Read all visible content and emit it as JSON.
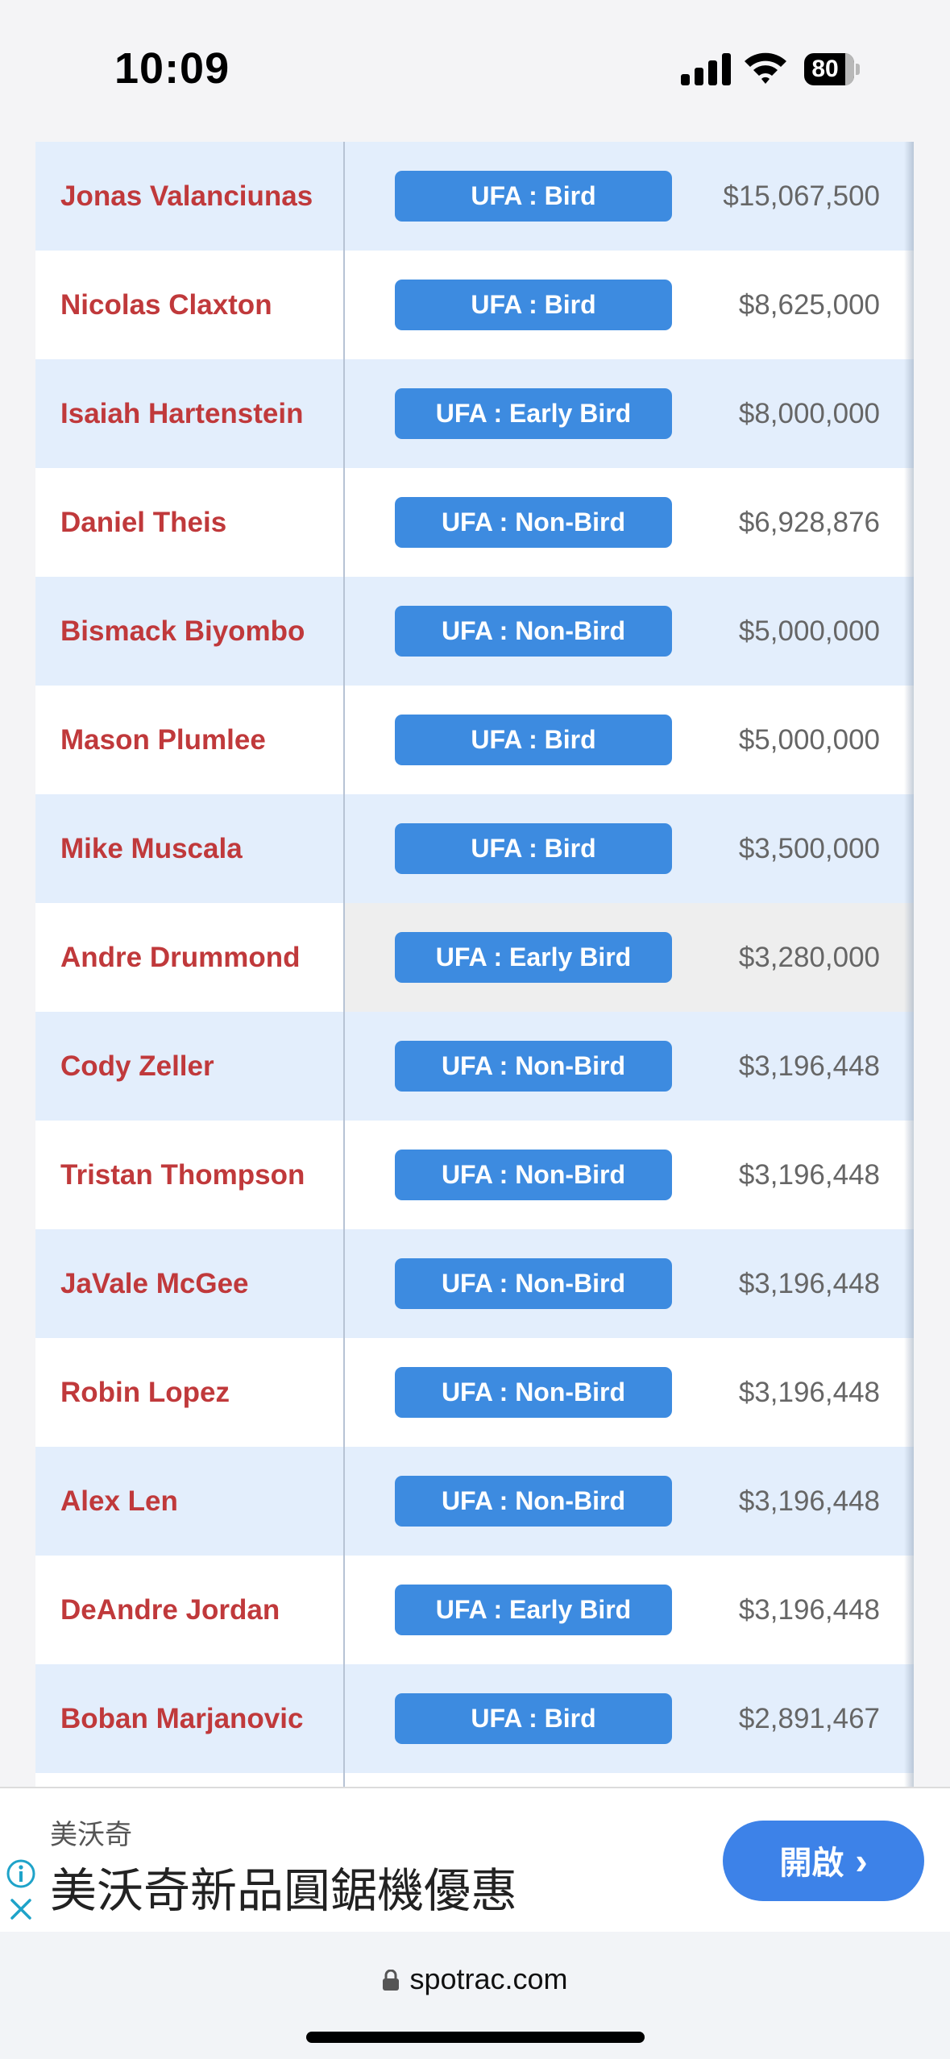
{
  "status_bar": {
    "time": "10:09",
    "battery": "80"
  },
  "rows": [
    {
      "name": "Jonas Valanciunas",
      "status": "UFA : Bird",
      "amount": "$15,067,500"
    },
    {
      "name": "Nicolas Claxton",
      "status": "UFA : Bird",
      "amount": "$8,625,000"
    },
    {
      "name": "Isaiah Hartenstein",
      "status": "UFA : Early Bird",
      "amount": "$8,000,000"
    },
    {
      "name": "Daniel Theis",
      "status": "UFA : Non-Bird",
      "amount": "$6,928,876"
    },
    {
      "name": "Bismack Biyombo",
      "status": "UFA : Non-Bird",
      "amount": "$5,000,000"
    },
    {
      "name": "Mason Plumlee",
      "status": "UFA : Bird",
      "amount": "$5,000,000"
    },
    {
      "name": "Mike Muscala",
      "status": "UFA : Bird",
      "amount": "$3,500,000"
    },
    {
      "name": "Andre Drummond",
      "status": "UFA : Early Bird",
      "amount": "$3,280,000"
    },
    {
      "name": "Cody Zeller",
      "status": "UFA : Non-Bird",
      "amount": "$3,196,448"
    },
    {
      "name": "Tristan Thompson",
      "status": "UFA : Non-Bird",
      "amount": "$3,196,448"
    },
    {
      "name": "JaVale McGee",
      "status": "UFA : Non-Bird",
      "amount": "$3,196,448"
    },
    {
      "name": "Robin Lopez",
      "status": "UFA : Non-Bird",
      "amount": "$3,196,448"
    },
    {
      "name": "Alex Len",
      "status": "UFA : Non-Bird",
      "amount": "$3,196,448"
    },
    {
      "name": "DeAndre Jordan",
      "status": "UFA : Early Bird",
      "amount": "$3,196,448"
    },
    {
      "name": "Boban Marjanovic",
      "status": "UFA : Bird",
      "amount": "$2,891,467"
    }
  ],
  "ad": {
    "brand": "美沃奇",
    "headline": "美沃奇新品圓鋸機優惠",
    "cta": "開啟"
  },
  "browser": {
    "url": "spotrac.com"
  },
  "colors": {
    "player_name": "#c0393b",
    "badge": "#3d8be0",
    "row_alt": "#e3eefc",
    "row_hover": "#eeeeee",
    "ad_cta": "#3d82e8"
  }
}
